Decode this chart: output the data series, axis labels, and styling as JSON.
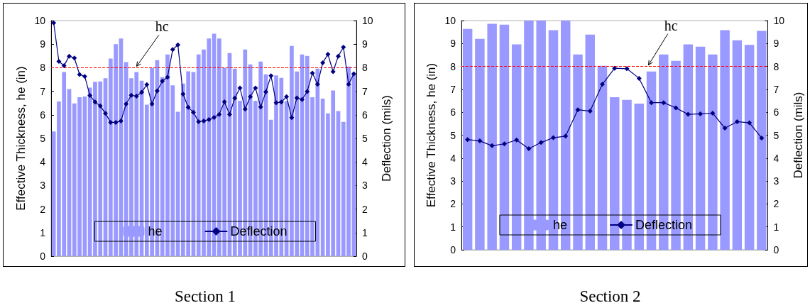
{
  "chart_data": [
    {
      "type": "bar",
      "title": "Section 1",
      "ylabel": "Effective Thickness, he (in)",
      "y2label": "Deflection (mils)",
      "categories": [
        null,
        null,
        null,
        null,
        null,
        null,
        null,
        null,
        null,
        null,
        null,
        null,
        null,
        null,
        null,
        null,
        null,
        null,
        null,
        null,
        null,
        null,
        null,
        null,
        null,
        null,
        null,
        null,
        null,
        null,
        null,
        null,
        null,
        null,
        null,
        null,
        null,
        null,
        null,
        null,
        null,
        null,
        null,
        null,
        null,
        null,
        null,
        null,
        null,
        null,
        null,
        null,
        null,
        null,
        null,
        null,
        null,
        null,
        null
      ],
      "series": [
        {
          "name": "he",
          "color": "#9999ff",
          "values": [
            5.29,
            6.57,
            7.82,
            7.09,
            6.48,
            6.75,
            6.78,
            7.15,
            7.4,
            7.42,
            7.55,
            8.39,
            9.0,
            9.24,
            8.24,
            7.55,
            7.82,
            7.45,
            6.43,
            7.99,
            8.32,
            7.6,
            8.56,
            7.25,
            6.13,
            7.33,
            7.85,
            7.82,
            8.56,
            8.77,
            9.24,
            9.44,
            9.24,
            7.99,
            8.62,
            7.96,
            6.6,
            8.77,
            8.14,
            6.6,
            8.26,
            7.72,
            5.79,
            7.67,
            7.57,
            6.58,
            8.92,
            7.84,
            8.56,
            8.5,
            6.75,
            7.96,
            6.69,
            6.06,
            7.03,
            6.16,
            5.7,
            8.05,
            7.72
          ]
        },
        {
          "name": "Deflection",
          "type": "line",
          "axis": "y2",
          "color": "#000080",
          "values": [
            9.9,
            8.27,
            8.09,
            8.49,
            8.41,
            7.71,
            7.63,
            6.82,
            6.54,
            6.38,
            6.06,
            5.68,
            5.68,
            5.74,
            6.46,
            6.83,
            6.79,
            6.96,
            7.28,
            6.46,
            7.02,
            7.43,
            7.6,
            8.77,
            8.97,
            6.88,
            6.32,
            6.11,
            5.71,
            5.74,
            5.8,
            5.89,
            6.02,
            6.55,
            6.02,
            6.71,
            7.14,
            6.24,
            6.77,
            7.14,
            6.33,
            6.97,
            7.66,
            6.51,
            6.54,
            6.77,
            5.88,
            6.72,
            6.65,
            6.99,
            7.77,
            7.3,
            8.21,
            8.57,
            7.83,
            8.49,
            8.87,
            7.3,
            7.74
          ]
        }
      ],
      "ylim": [
        0,
        10
      ],
      "yticks": [
        0,
        1,
        2,
        3,
        4,
        5,
        6,
        7,
        8,
        9,
        10
      ],
      "y2lim": [
        0,
        10
      ],
      "y2ticks": [
        0,
        1,
        2,
        3,
        4,
        5,
        6,
        7,
        8,
        9,
        10
      ],
      "ref_lines": [
        {
          "axis": "y",
          "value": 8,
          "label": "hc",
          "color": "#ff0000",
          "line_style": "dashed"
        }
      ],
      "legend": "bottom",
      "grid": false,
      "marker": "diamond",
      "line_style": "solid"
    },
    {
      "type": "bar",
      "title": "Section 2",
      "ylabel": "Effective Thickness, he (in)",
      "y2label": "Deflection (mils)",
      "categories": [
        null,
        null,
        null,
        null,
        null,
        null,
        null,
        null,
        null,
        null,
        null,
        null,
        null,
        null,
        null,
        null,
        null,
        null,
        null,
        null,
        null,
        null,
        null,
        null,
        null
      ],
      "series": [
        {
          "name": "he",
          "color": "#9999ff",
          "values": [
            9.64,
            9.2,
            9.86,
            9.82,
            8.96,
            10,
            10,
            9.58,
            10,
            8.52,
            9.39,
            8.03,
            6.66,
            6.54,
            6.38,
            7.78,
            8.52,
            8.24,
            8.96,
            8.86,
            8.52,
            9.58,
            9.14,
            8.94,
            9.55
          ]
        },
        {
          "name": "Deflection",
          "type": "line",
          "axis": "y2",
          "color": "#000080",
          "values": [
            4.81,
            4.75,
            4.54,
            4.62,
            4.79,
            4.41,
            4.68,
            4.89,
            4.96,
            6.11,
            6.05,
            7.22,
            7.92,
            7.9,
            7.48,
            6.42,
            6.42,
            6.19,
            5.91,
            5.93,
            5.96,
            5.31,
            5.59,
            5.54,
            4.88
          ]
        }
      ],
      "ylim": [
        0,
        10
      ],
      "yticks": [
        0,
        1,
        2,
        3,
        4,
        5,
        6,
        7,
        8,
        9,
        10
      ],
      "y2lim": [
        0,
        10
      ],
      "y2ticks": [
        0,
        1,
        2,
        3,
        4,
        5,
        6,
        7,
        8,
        9,
        10
      ],
      "ref_lines": [
        {
          "axis": "y",
          "value": 8,
          "label": "hc",
          "color": "#ff0000",
          "line_style": "dashed"
        }
      ],
      "legend": "bottom",
      "grid": false,
      "marker": "diamond",
      "line_style": "solid"
    }
  ]
}
